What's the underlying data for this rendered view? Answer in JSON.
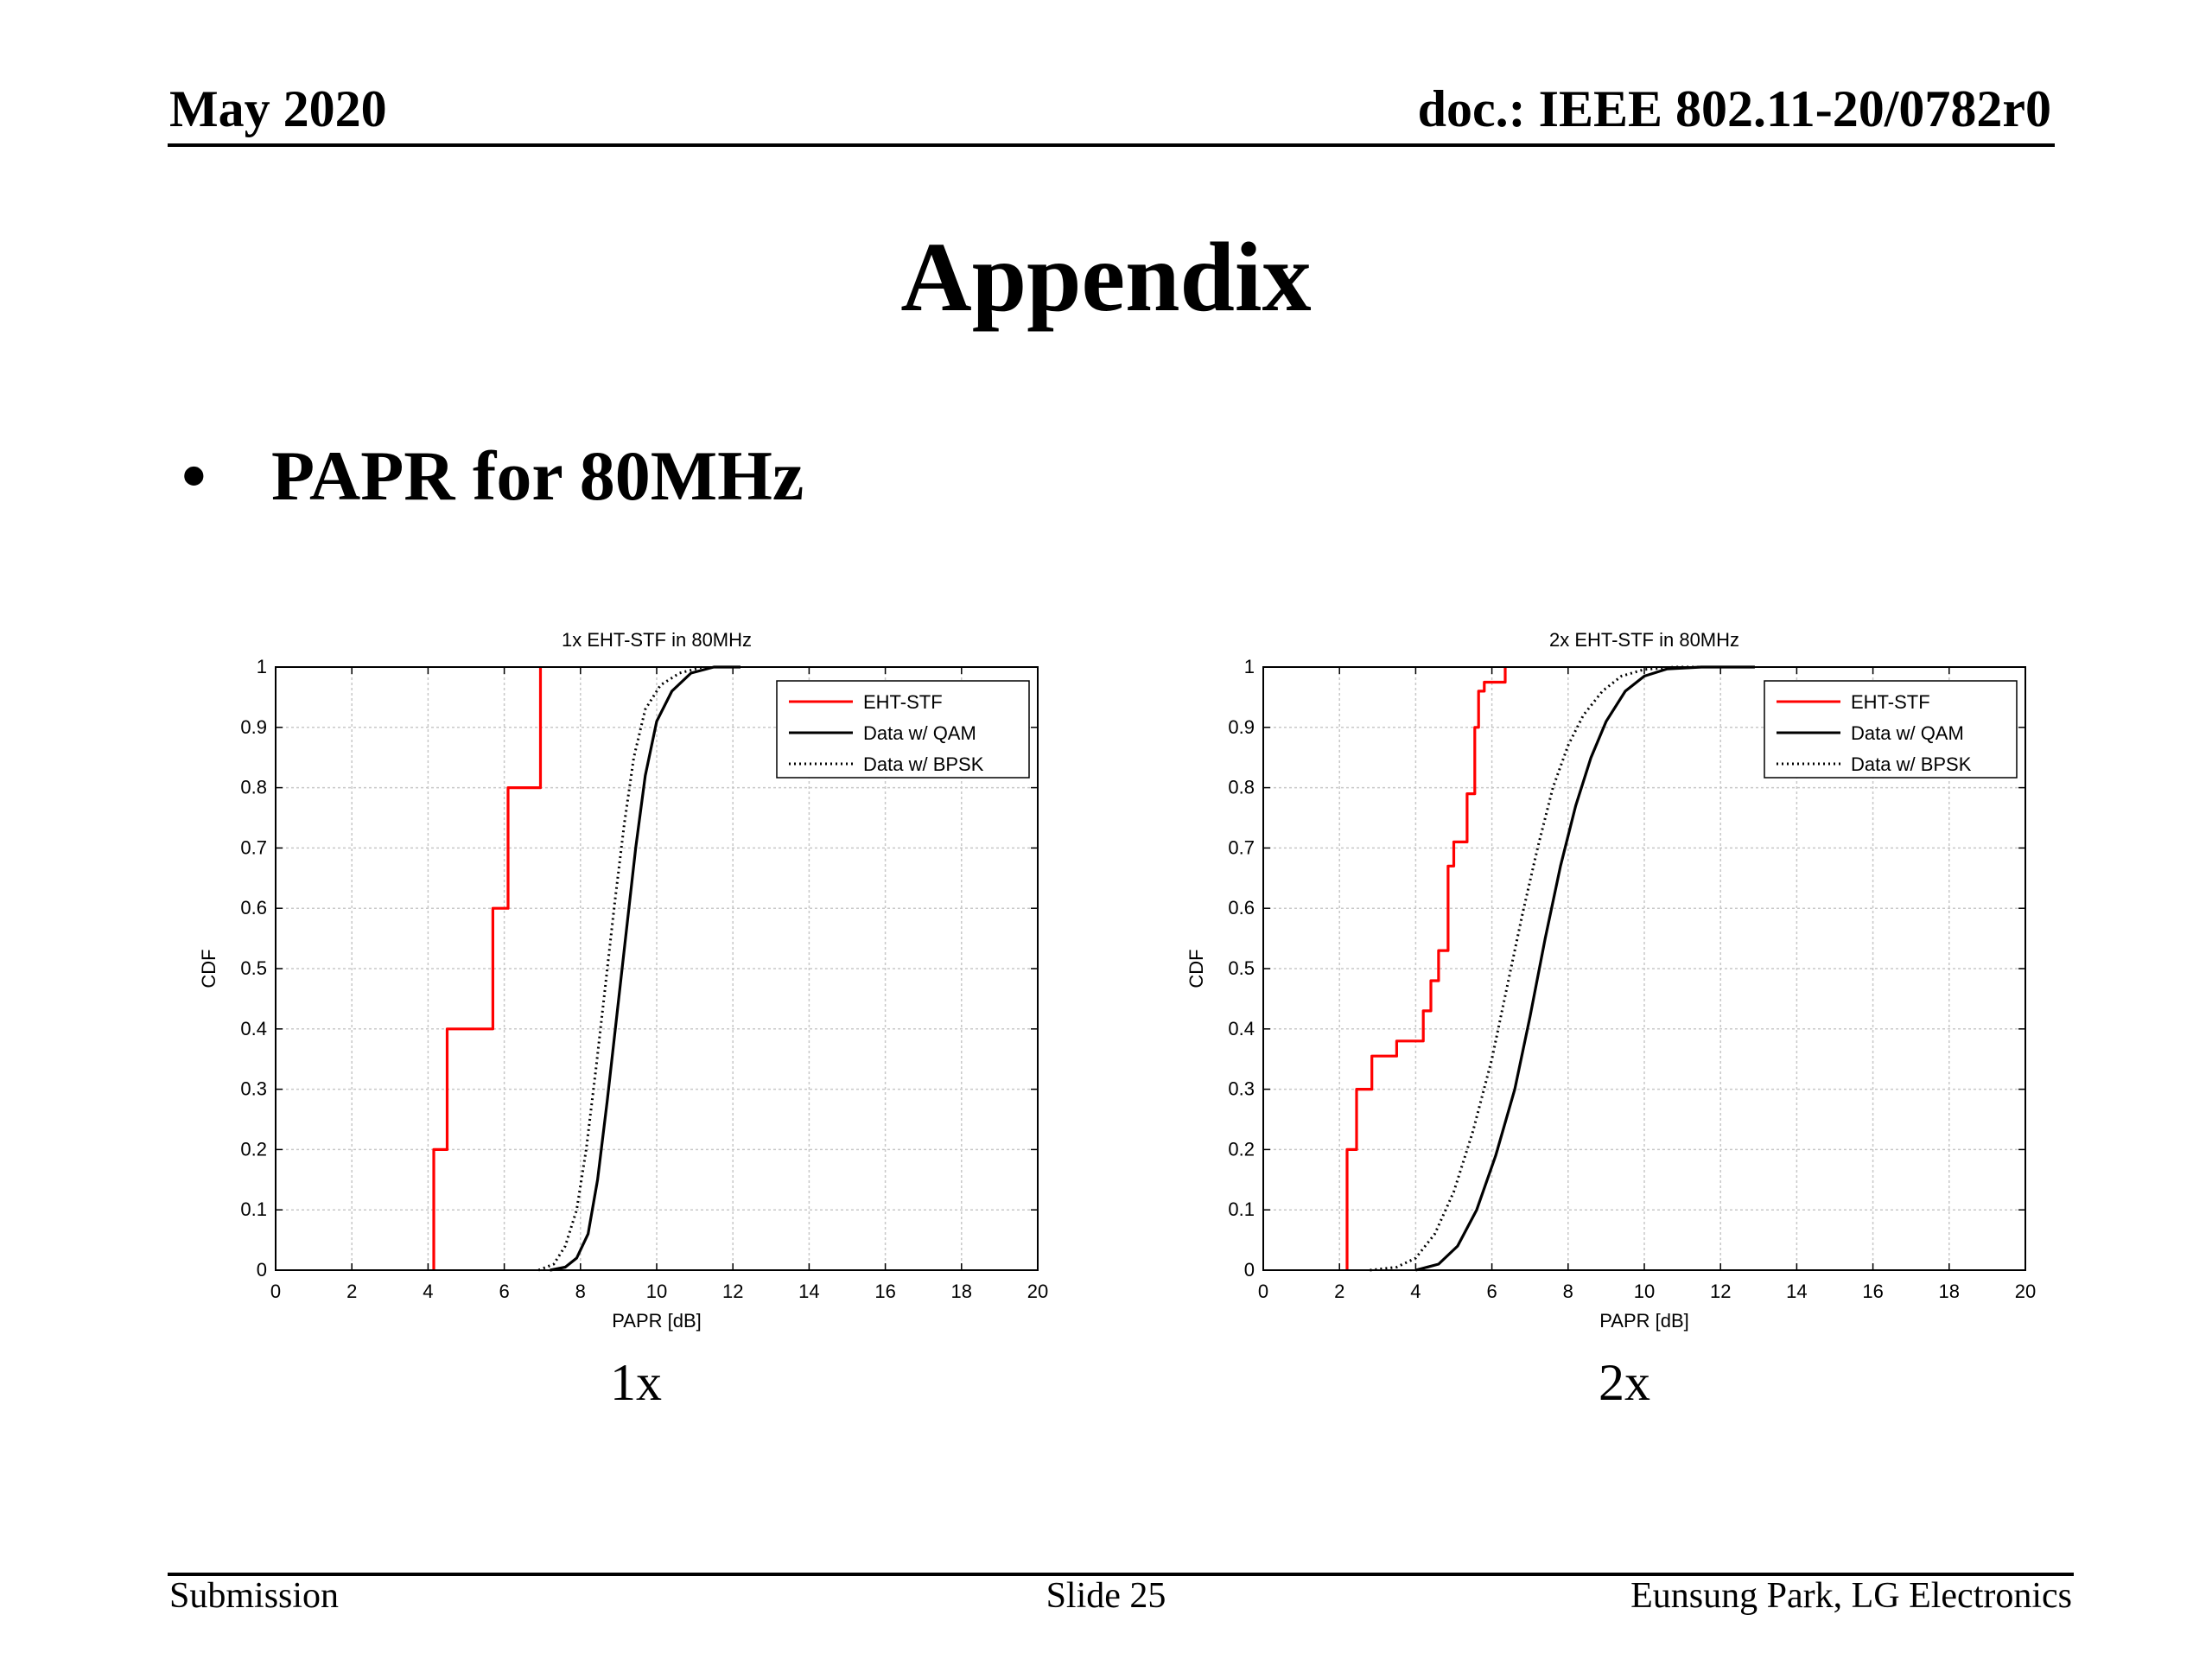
{
  "header": {
    "date": "May 2020",
    "doc": "doc.: IEEE 802.11-20/0782r0"
  },
  "title": "Appendix",
  "bullet": {
    "marker": "•",
    "text": "PAPR for 80MHz"
  },
  "captions": [
    "1x",
    "2x"
  ],
  "footer": {
    "left": "Submission",
    "center": "Slide 25",
    "right": "Eunsung Park, LG Electronics"
  },
  "colors": {
    "eht_stf": "#ff0000",
    "data": "#000000",
    "grid": "#c8c8c8"
  },
  "chart_data": [
    {
      "type": "line",
      "title": "1x EHT-STF in 80MHz",
      "xlabel": "PAPR [dB]",
      "ylabel": "CDF",
      "xlim": [
        0,
        20
      ],
      "ylim": [
        0,
        1
      ],
      "xticks": [
        "0",
        "2",
        "4",
        "6",
        "8",
        "10",
        "12",
        "14",
        "16",
        "18",
        "20"
      ],
      "yticks": [
        "0",
        "0.1",
        "0.2",
        "0.3",
        "0.4",
        "0.5",
        "0.6",
        "0.7",
        "0.8",
        "0.9",
        "1"
      ],
      "grid": true,
      "legend_position": "top-right",
      "series": [
        {
          "name": "EHT-STF",
          "style": "solid",
          "color": "#ff0000",
          "step": true,
          "x": [
            4.15,
            4.15,
            4.5,
            4.5,
            5.7,
            5.7,
            6.1,
            6.1,
            6.95,
            6.95
          ],
          "y": [
            0,
            0.2,
            0.2,
            0.4,
            0.4,
            0.6,
            0.6,
            0.8,
            0.8,
            1.0
          ]
        },
        {
          "name": "Data w/ QAM",
          "style": "solid",
          "color": "#000000",
          "step": false,
          "x": [
            7.2,
            7.6,
            7.9,
            8.2,
            8.45,
            8.7,
            8.95,
            9.2,
            9.45,
            9.7,
            10.0,
            10.4,
            10.9,
            11.5,
            12.2
          ],
          "y": [
            0,
            0.005,
            0.02,
            0.06,
            0.15,
            0.28,
            0.42,
            0.56,
            0.7,
            0.82,
            0.91,
            0.96,
            0.99,
            1.0,
            1.0
          ]
        },
        {
          "name": "Data w/ BPSK",
          "style": "dotted",
          "color": "#000000",
          "step": false,
          "x": [
            6.9,
            7.3,
            7.6,
            7.9,
            8.15,
            8.4,
            8.65,
            8.9,
            9.15,
            9.4,
            9.7,
            10.1,
            10.6,
            11.2
          ],
          "y": [
            0,
            0.01,
            0.04,
            0.1,
            0.2,
            0.33,
            0.47,
            0.61,
            0.74,
            0.85,
            0.93,
            0.97,
            0.99,
            1.0
          ]
        }
      ]
    },
    {
      "type": "line",
      "title": "2x EHT-STF in 80MHz",
      "xlabel": "PAPR [dB]",
      "ylabel": "CDF",
      "xlim": [
        0,
        20
      ],
      "ylim": [
        0,
        1
      ],
      "xticks": [
        "0",
        "2",
        "4",
        "6",
        "8",
        "10",
        "12",
        "14",
        "16",
        "18",
        "20"
      ],
      "yticks": [
        "0",
        "0.1",
        "0.2",
        "0.3",
        "0.4",
        "0.5",
        "0.6",
        "0.7",
        "0.8",
        "0.9",
        "1"
      ],
      "grid": true,
      "legend_position": "top-right",
      "series": [
        {
          "name": "EHT-STF",
          "style": "solid",
          "color": "#ff0000",
          "step": true,
          "x": [
            2.2,
            2.2,
            2.45,
            2.45,
            2.85,
            2.85,
            3.5,
            3.5,
            4.2,
            4.2,
            4.4,
            4.4,
            4.6,
            4.6,
            4.85,
            4.85,
            5.0,
            5.0,
            5.35,
            5.35,
            5.55,
            5.55,
            5.65,
            5.65,
            5.8,
            5.8,
            6.35,
            6.35
          ],
          "y": [
            0,
            0.2,
            0.2,
            0.3,
            0.3,
            0.355,
            0.355,
            0.38,
            0.38,
            0.43,
            0.43,
            0.48,
            0.48,
            0.53,
            0.53,
            0.67,
            0.67,
            0.71,
            0.71,
            0.79,
            0.79,
            0.9,
            0.9,
            0.96,
            0.96,
            0.975,
            0.975,
            1.0
          ]
        },
        {
          "name": "Data w/ QAM",
          "style": "solid",
          "color": "#000000",
          "step": false,
          "x": [
            4.0,
            4.6,
            5.1,
            5.6,
            6.1,
            6.6,
            7.0,
            7.4,
            7.8,
            8.2,
            8.6,
            9.0,
            9.5,
            10.0,
            10.6,
            11.5,
            12.9
          ],
          "y": [
            0,
            0.01,
            0.04,
            0.1,
            0.19,
            0.3,
            0.42,
            0.55,
            0.67,
            0.77,
            0.85,
            0.91,
            0.96,
            0.985,
            0.997,
            1.0,
            1.0
          ]
        },
        {
          "name": "Data w/ BPSK",
          "style": "dotted",
          "color": "#000000",
          "step": false,
          "x": [
            2.8,
            3.5,
            4.0,
            4.5,
            5.0,
            5.5,
            6.0,
            6.4,
            6.8,
            7.2,
            7.6,
            8.0,
            8.4,
            8.9,
            9.4,
            10.0,
            10.8,
            11.8
          ],
          "y": [
            0,
            0.005,
            0.02,
            0.06,
            0.13,
            0.23,
            0.35,
            0.47,
            0.59,
            0.7,
            0.8,
            0.87,
            0.92,
            0.96,
            0.985,
            0.996,
            1.0,
            1.0
          ]
        }
      ]
    }
  ]
}
